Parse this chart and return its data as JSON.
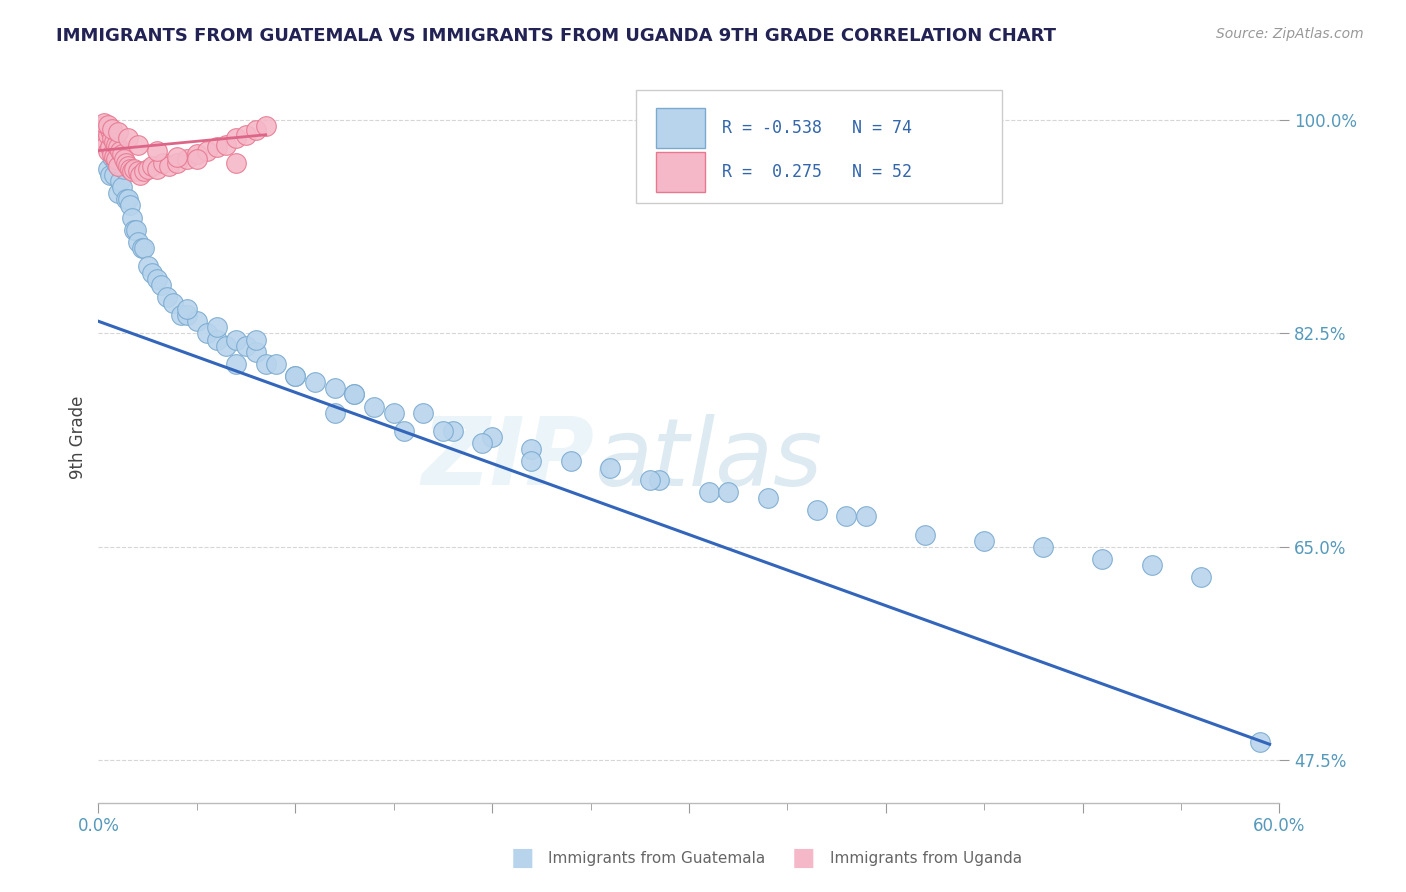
{
  "title": "IMMIGRANTS FROM GUATEMALA VS IMMIGRANTS FROM UGANDA 9TH GRADE CORRELATION CHART",
  "source": "Source: ZipAtlas.com",
  "ylabel": "9th Grade",
  "xlim": [
    0.0,
    0.6
  ],
  "ylim": [
    0.44,
    1.04
  ],
  "guatemala_color": "#b8d4ed",
  "guatemala_edge": "#7aaad0",
  "uganda_color": "#f4b8c8",
  "uganda_edge": "#e87890",
  "trend_guatemala_color": "#3366bb",
  "trend_uganda_color": "#dd6688",
  "R_guatemala": -0.538,
  "N_guatemala": 74,
  "R_uganda": 0.275,
  "N_uganda": 52,
  "trend_g_x0": 0.0,
  "trend_g_y0": 0.835,
  "trend_g_x1": 0.595,
  "trend_g_y1": 0.488,
  "trend_u_x0": 0.0,
  "trend_u_y0": 0.975,
  "trend_u_x1": 0.085,
  "trend_u_y1": 0.988
}
